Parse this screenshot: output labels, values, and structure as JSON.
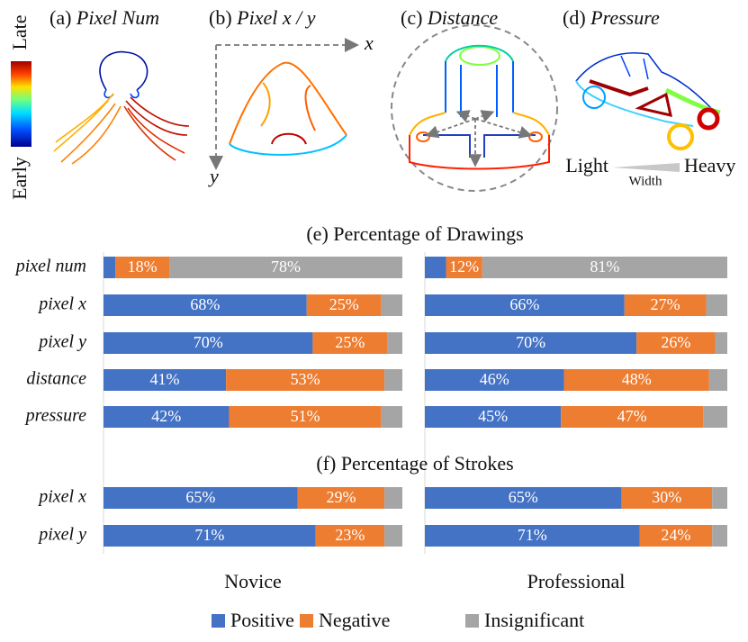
{
  "illustrations": {
    "colorbar": {
      "top": "Late",
      "bottom": "Early"
    },
    "panels": [
      {
        "label": "(a)",
        "title": "Pixel Num"
      },
      {
        "label": "(b)",
        "title": "Pixel x / y"
      },
      {
        "label": "(c)",
        "title": "Distance"
      },
      {
        "label": "(d)",
        "title": "Pressure"
      }
    ],
    "axis_x": "x",
    "axis_y": "y",
    "width_legend": {
      "left": "Light",
      "right": "Heavy",
      "label": "Width"
    }
  },
  "groups": [
    "Novice",
    "Professional"
  ],
  "chart_data": [
    {
      "type": "bar",
      "orientation": "horizontal",
      "stacked": true,
      "title": "(e) Percentage of Drawings",
      "categories": [
        "pixel num",
        "pixel x",
        "pixel y",
        "distance",
        "pressure"
      ],
      "xlim": [
        0,
        100
      ],
      "series": [
        {
          "name": "Positive",
          "color": "#4472c4",
          "values": [
            [
              4,
              68,
              70,
              41,
              42
            ],
            [
              7,
              66,
              70,
              46,
              45
            ]
          ],
          "value_labels": [
            [
              null,
              "68%",
              "70%",
              "41%",
              "42%"
            ],
            [
              null,
              "66%",
              "70%",
              "46%",
              "45%"
            ]
          ]
        },
        {
          "name": "Negative",
          "color": "#ed7d31",
          "values": [
            [
              18,
              25,
              25,
              53,
              51
            ],
            [
              12,
              27,
              26,
              48,
              47
            ]
          ],
          "value_labels": [
            [
              "18%",
              "25%",
              "25%",
              "53%",
              "51%"
            ],
            [
              "12%",
              "27%",
              "26%",
              "48%",
              "47%"
            ]
          ]
        },
        {
          "name": "Insignificant",
          "color": "#a5a5a5",
          "values": [
            [
              78,
              7,
              5,
              6,
              7
            ],
            [
              81,
              7,
              4,
              6,
              8
            ]
          ],
          "value_labels": [
            [
              "78%",
              null,
              null,
              null,
              null
            ],
            [
              "81%",
              null,
              null,
              null,
              null
            ]
          ]
        }
      ]
    },
    {
      "type": "bar",
      "orientation": "horizontal",
      "stacked": true,
      "title": "(f) Percentage of Strokes",
      "categories": [
        "pixel x",
        "pixel y"
      ],
      "xlim": [
        0,
        100
      ],
      "series": [
        {
          "name": "Positive",
          "color": "#4472c4",
          "values": [
            [
              65,
              71
            ],
            [
              65,
              71
            ]
          ],
          "value_labels": [
            [
              "65%",
              "71%"
            ],
            [
              "65%",
              "71%"
            ]
          ]
        },
        {
          "name": "Negative",
          "color": "#ed7d31",
          "values": [
            [
              29,
              23
            ],
            [
              30,
              24
            ]
          ],
          "value_labels": [
            [
              "29%",
              "23%"
            ],
            [
              "30%",
              "24%"
            ]
          ]
        },
        {
          "name": "Insignificant",
          "color": "#a5a5a5",
          "values": [
            [
              6,
              6
            ],
            [
              5,
              5
            ]
          ],
          "value_labels": [
            [
              null,
              null
            ],
            [
              null,
              null
            ]
          ]
        }
      ]
    }
  ]
}
